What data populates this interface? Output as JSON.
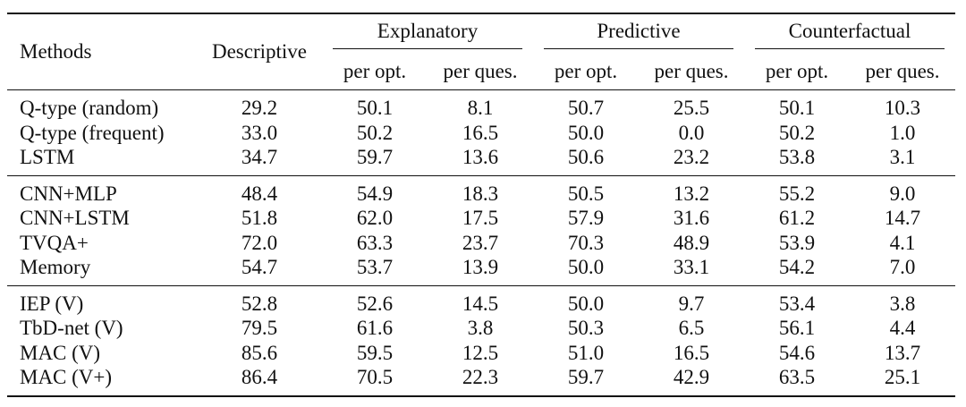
{
  "header": {
    "methods": "Methods",
    "descriptive": "Descriptive",
    "groups": [
      "Explanatory",
      "Predictive",
      "Counterfactual"
    ],
    "subcolumns": [
      "per opt.",
      "per ques.",
      "per opt.",
      "per ques.",
      "per opt.",
      "per ques."
    ]
  },
  "groups": [
    {
      "rows": [
        {
          "method": "Q-type (random)",
          "values": [
            "29.2",
            "50.1",
            "8.1",
            "50.7",
            "25.5",
            "50.1",
            "10.3"
          ]
        },
        {
          "method": "Q-type (frequent)",
          "values": [
            "33.0",
            "50.2",
            "16.5",
            "50.0",
            "0.0",
            "50.2",
            "1.0"
          ]
        },
        {
          "method": "LSTM",
          "values": [
            "34.7",
            "59.7",
            "13.6",
            "50.6",
            "23.2",
            "53.8",
            "3.1"
          ]
        }
      ]
    },
    {
      "rows": [
        {
          "method": "CNN+MLP",
          "values": [
            "48.4",
            "54.9",
            "18.3",
            "50.5",
            "13.2",
            "55.2",
            "9.0"
          ]
        },
        {
          "method": "CNN+LSTM",
          "values": [
            "51.8",
            "62.0",
            "17.5",
            "57.9",
            "31.6",
            "61.2",
            "14.7"
          ]
        },
        {
          "method": "TVQA+",
          "values": [
            "72.0",
            "63.3",
            "23.7",
            "70.3",
            "48.9",
            "53.9",
            "4.1"
          ]
        },
        {
          "method": "Memory",
          "values": [
            "54.7",
            "53.7",
            "13.9",
            "50.0",
            "33.1",
            "54.2",
            "7.0"
          ]
        }
      ]
    },
    {
      "rows": [
        {
          "method": "IEP (V)",
          "values": [
            "52.8",
            "52.6",
            "14.5",
            "50.0",
            "9.7",
            "53.4",
            "3.8"
          ]
        },
        {
          "method": "TbD-net (V)",
          "values": [
            "79.5",
            "61.6",
            "3.8",
            "50.3",
            "6.5",
            "56.1",
            "4.4"
          ]
        },
        {
          "method": "MAC (V)",
          "values": [
            "85.6",
            "59.5",
            "12.5",
            "51.0",
            "16.5",
            "54.6",
            "13.7"
          ]
        },
        {
          "method": "MAC (V+)",
          "values": [
            "86.4",
            "70.5",
            "22.3",
            "59.7",
            "42.9",
            "63.5",
            "25.1"
          ]
        }
      ]
    }
  ]
}
